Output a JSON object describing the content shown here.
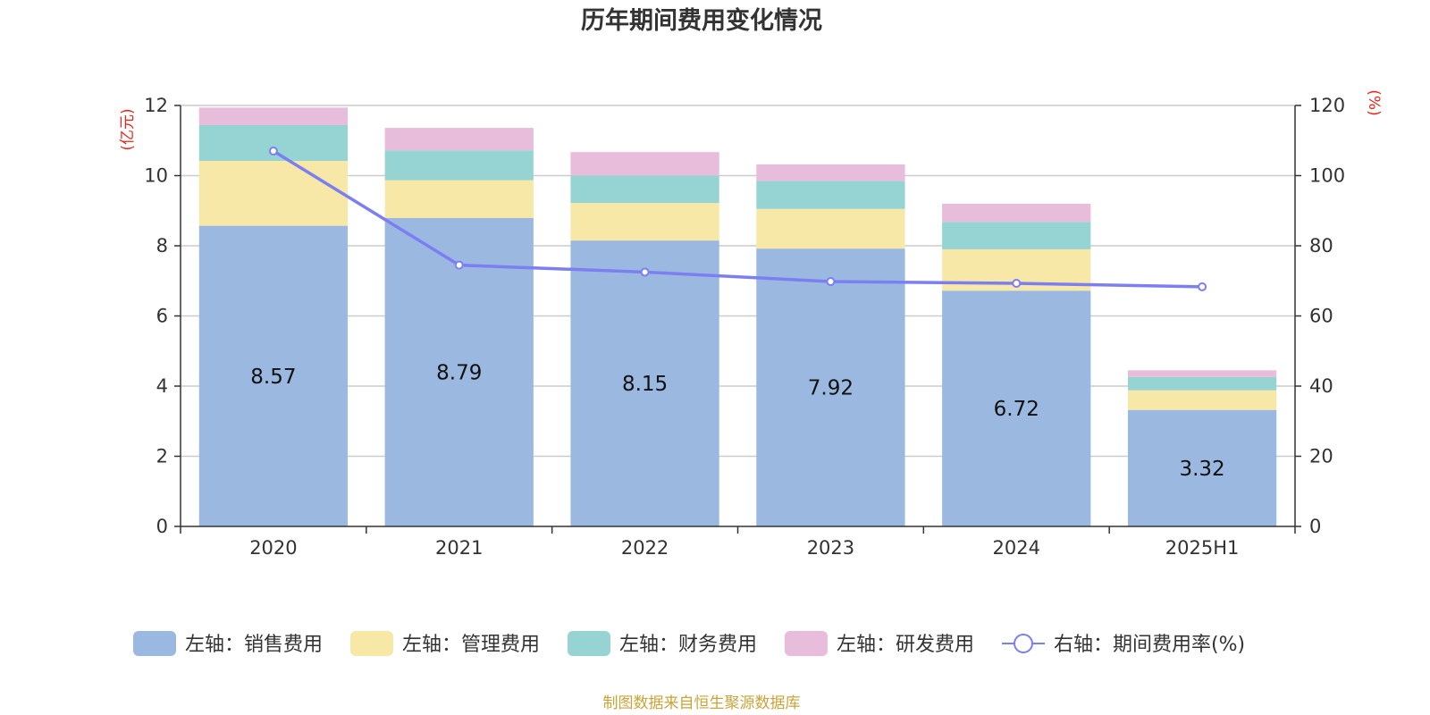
{
  "chart_data": {
    "type": "bar",
    "title": "历年期间费用变化情况",
    "categories": [
      "2020",
      "2021",
      "2022",
      "2023",
      "2024",
      "2025H1"
    ],
    "left_axis": {
      "unit": "(亿元)",
      "ylim": [
        0,
        12
      ],
      "ticks": [
        0,
        2,
        4,
        6,
        8,
        10,
        12
      ]
    },
    "right_axis": {
      "unit": "(%)",
      "ylim": [
        0,
        120
      ],
      "ticks": [
        0,
        20,
        40,
        60,
        80,
        100,
        120
      ]
    },
    "series": [
      {
        "name": "左轴：销售费用",
        "type": "bar",
        "axis": "left",
        "color": "#9bb8e1",
        "values": [
          8.57,
          8.79,
          8.15,
          7.92,
          6.72,
          3.32
        ],
        "data_labels": [
          "8.57",
          "8.79",
          "8.15",
          "7.92",
          "6.72",
          "3.32"
        ]
      },
      {
        "name": "左轴：管理费用",
        "type": "bar",
        "axis": "left",
        "color": "#f8e8a8",
        "values": [
          1.85,
          1.08,
          1.07,
          1.13,
          1.18,
          0.56
        ]
      },
      {
        "name": "左轴：财务费用",
        "type": "bar",
        "axis": "left",
        "color": "#96d3d3",
        "values": [
          1.02,
          0.85,
          0.78,
          0.8,
          0.78,
          0.38
        ]
      },
      {
        "name": "左轴：研发费用",
        "type": "bar",
        "axis": "left",
        "color": "#e8bcdb",
        "values": [
          0.5,
          0.64,
          0.67,
          0.47,
          0.52,
          0.19
        ]
      },
      {
        "name": "右轴：期间费用率(%)",
        "type": "line",
        "axis": "right",
        "color": "#7b7ff2",
        "values": [
          107,
          74.5,
          72.5,
          69.8,
          69.3,
          68.3
        ]
      }
    ],
    "grid": true,
    "legend_position": "bottom"
  },
  "source_text": "制图数据来自恒生聚源数据库",
  "colors": {
    "axis_unit": "#e8251c",
    "source": "#c9a43a",
    "gridline": "#cccccc",
    "axis": "#333333"
  }
}
